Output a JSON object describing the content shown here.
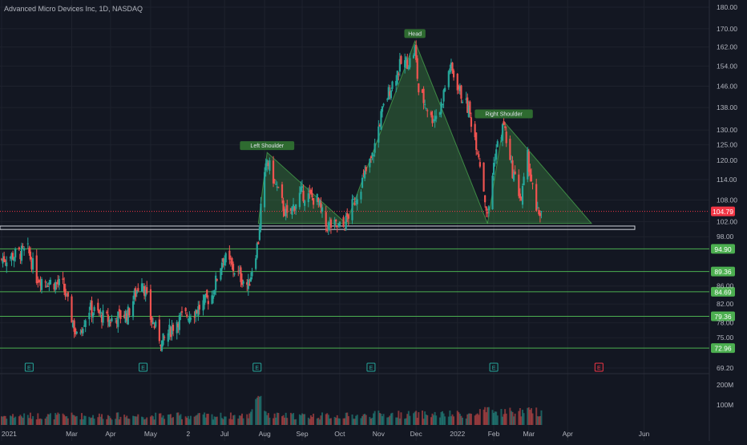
{
  "header": {
    "symbol_title": "Advanced Micro Devices Inc, 1D, NASDAQ"
  },
  "colors": {
    "background": "#131722",
    "grid": "#1e222d",
    "axis_text": "#b2b5be",
    "up": "#26a69a",
    "down": "#ef5350",
    "level_line": "#4caf50",
    "level_badge": "#4caf50",
    "pattern_fill": "#4caf50",
    "current_price": "#f23645",
    "earnings_past": "#26a69a",
    "earnings_future": "#f23645"
  },
  "chart_data": {
    "type": "candlestick",
    "title": "Advanced Micro Devices Inc, 1D, NASDAQ",
    "price_axis": {
      "scale": "log",
      "ticks": [
        "180.00",
        "170.00",
        "162.00",
        "154.00",
        "146.00",
        "138.00",
        "130.00",
        "125.00",
        "120.00",
        "114.00",
        "108.00",
        "102.00",
        "98.00",
        "86.00",
        "82.00",
        "78.00",
        "75.00",
        "69.20"
      ]
    },
    "volume_axis": {
      "ticks": [
        "200M",
        "100M"
      ]
    },
    "time_axis": {
      "ticks": [
        "2021",
        "Mar",
        "Apr",
        "May",
        "2",
        "Jul",
        "Aug",
        "Sep",
        "Oct",
        "Nov",
        "Dec",
        "2022",
        "Feb",
        "Mar",
        "Apr",
        "Jun"
      ]
    },
    "current_price": {
      "label": "104.79",
      "value": 104.79
    },
    "horizontal_levels": [
      {
        "label": "94.90",
        "value": 94.9
      },
      {
        "label": "89.36",
        "value": 89.36
      },
      {
        "label": "84.69",
        "value": 84.69
      },
      {
        "label": "79.36",
        "value": 79.36
      },
      {
        "label": "72.96",
        "value": 72.96
      }
    ],
    "neckline_zone": {
      "from": 99.9,
      "to": 100.8
    },
    "pattern": {
      "name": "Head and Shoulders",
      "labels": {
        "left_shoulder": "Left Shoulder",
        "head": "Head",
        "right_shoulder": "Right Shoulder"
      },
      "left_shoulder_peak": 122.5,
      "head_peak": 164.5,
      "right_shoulder_peak": 133
    },
    "earnings": {
      "marker": "E",
      "past_count": 5,
      "future_count": 1
    },
    "price_anchors": [
      [
        "2021-01-04",
        92.3
      ],
      [
        "2021-01-25",
        94.5
      ],
      [
        "2021-02-01",
        88
      ],
      [
        "2021-02-22",
        86
      ],
      [
        "2021-03-05",
        75
      ],
      [
        "2021-03-15",
        81
      ],
      [
        "2021-03-31",
        78.5
      ],
      [
        "2021-04-15",
        80
      ],
      [
        "2021-04-26",
        88
      ],
      [
        "2021-05-03",
        79
      ],
      [
        "2021-05-12",
        74
      ],
      [
        "2021-05-24",
        78.5
      ],
      [
        "2021-06-10",
        81
      ],
      [
        "2021-06-21",
        84
      ],
      [
        "2021-06-30",
        93
      ],
      [
        "2021-07-08",
        90
      ],
      [
        "2021-07-20",
        86
      ],
      [
        "2021-07-28",
        97
      ],
      [
        "2021-07-30",
        106
      ],
      [
        "2021-08-04",
        120
      ],
      [
        "2021-08-13",
        110
      ],
      [
        "2021-08-20",
        103
      ],
      [
        "2021-08-31",
        110
      ],
      [
        "2021-09-13",
        108
      ],
      [
        "2021-09-20",
        101
      ],
      [
        "2021-10-04",
        100.5
      ],
      [
        "2021-10-13",
        108
      ],
      [
        "2021-10-27",
        121
      ],
      [
        "2021-11-03",
        135
      ],
      [
        "2021-11-10",
        145
      ],
      [
        "2021-11-19",
        155
      ],
      [
        "2021-11-26",
        156
      ],
      [
        "2021-11-30",
        161
      ],
      [
        "2021-12-03",
        144
      ],
      [
        "2021-12-10",
        138
      ],
      [
        "2021-12-13",
        134
      ],
      [
        "2021-12-20",
        137
      ],
      [
        "2021-12-28",
        154
      ],
      [
        "2022-01-05",
        144
      ],
      [
        "2022-01-12",
        137
      ],
      [
        "2022-01-20",
        122
      ],
      [
        "2022-01-27",
        103
      ],
      [
        "2022-02-02",
        122
      ],
      [
        "2022-02-09",
        132
      ],
      [
        "2022-02-14",
        119
      ],
      [
        "2022-02-23",
        108
      ],
      [
        "2022-02-28",
        121
      ],
      [
        "2022-03-07",
        104
      ],
      [
        "2022-03-11",
        104.79
      ]
    ],
    "volume_millions": {
      "typical": 45,
      "peak_date": "2021-07-28",
      "peak": 155
    }
  }
}
